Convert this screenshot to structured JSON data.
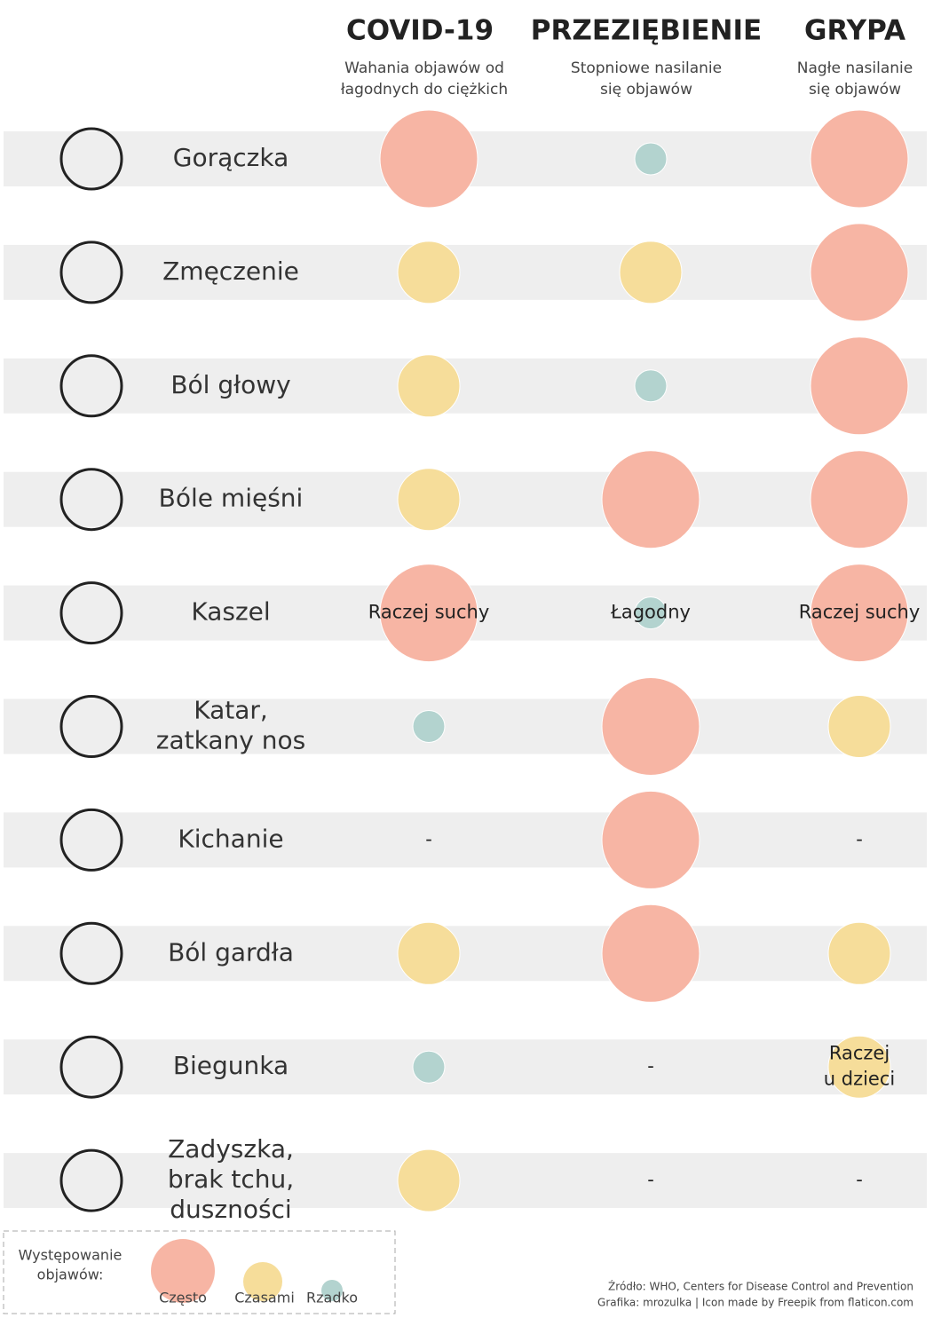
{
  "columns": [
    {
      "title": "COVID-19",
      "subtitle": [
        "Wahania objawów od",
        "łagodnych do ciężkich"
      ]
    },
    {
      "title": "PRZEZIĘBIENIE",
      "subtitle": [
        "Stopniowe nasilanie",
        "się objawów"
      ]
    },
    {
      "title": "GRYPA",
      "subtitle": [
        "Nagłe nasilanie",
        "się objawów"
      ]
    }
  ],
  "rows": [
    {
      "label": [
        "Gorączka"
      ],
      "cells": [
        {
          "level": 0
        },
        {
          "level": 2
        },
        {
          "level": 0
        }
      ]
    },
    {
      "label": [
        "Zmęczenie"
      ],
      "cells": [
        {
          "level": 1
        },
        {
          "level": 1
        },
        {
          "level": 0
        }
      ]
    },
    {
      "label": [
        "Ból głowy"
      ],
      "cells": [
        {
          "level": 1
        },
        {
          "level": 2
        },
        {
          "level": 0
        }
      ]
    },
    {
      "label": [
        "Bóle mięśni"
      ],
      "cells": [
        {
          "level": 1
        },
        {
          "level": 0
        },
        {
          "level": 0
        }
      ]
    },
    {
      "label": [
        "Kaszel"
      ],
      "cells": [
        {
          "level": 0,
          "text": [
            "Raczej suchy"
          ]
        },
        {
          "level": 2,
          "text": [
            "Łagodny"
          ]
        },
        {
          "level": 0,
          "text": [
            "Raczej suchy"
          ]
        }
      ]
    },
    {
      "label": [
        "Katar,",
        "zatkany nos"
      ],
      "cells": [
        {
          "level": 2
        },
        {
          "level": 0
        },
        {
          "level": 1
        }
      ]
    },
    {
      "label": [
        "Kichanie"
      ],
      "cells": [
        {
          "text": [
            "-"
          ]
        },
        {
          "level": 0
        },
        {
          "text": [
            "-"
          ]
        }
      ]
    },
    {
      "label": [
        "Ból gardła"
      ],
      "cells": [
        {
          "level": 1
        },
        {
          "level": 0
        },
        {
          "level": 1
        }
      ]
    },
    {
      "label": [
        "Biegunka"
      ],
      "cells": [
        {
          "level": 2
        },
        {
          "text": [
            "-"
          ]
        },
        {
          "level": 1,
          "text": [
            "Raczej",
            "u dzieci"
          ]
        }
      ]
    },
    {
      "label": [
        "Zadyszka,",
        "brak tchu,",
        "duszności"
      ],
      "cells": [
        {
          "level": 1
        },
        {
          "text": [
            "-"
          ]
        },
        {
          "text": [
            "-"
          ]
        }
      ]
    }
  ],
  "legend": {
    "title": [
      "Występowanie",
      "objawów:"
    ],
    "items": [
      {
        "label": "Często",
        "color": "#f7b5a4"
      },
      {
        "label": "Czasami",
        "color": "#f6dd9a"
      },
      {
        "label": "Rzadko",
        "color": "#b3d3cf"
      }
    ]
  },
  "footer": [
    "Źródło: WHO, Centers for Disease Control and Prevention",
    "Grafika: mrozulka  |  Icon made by Freepik from flaticon.com"
  ]
}
